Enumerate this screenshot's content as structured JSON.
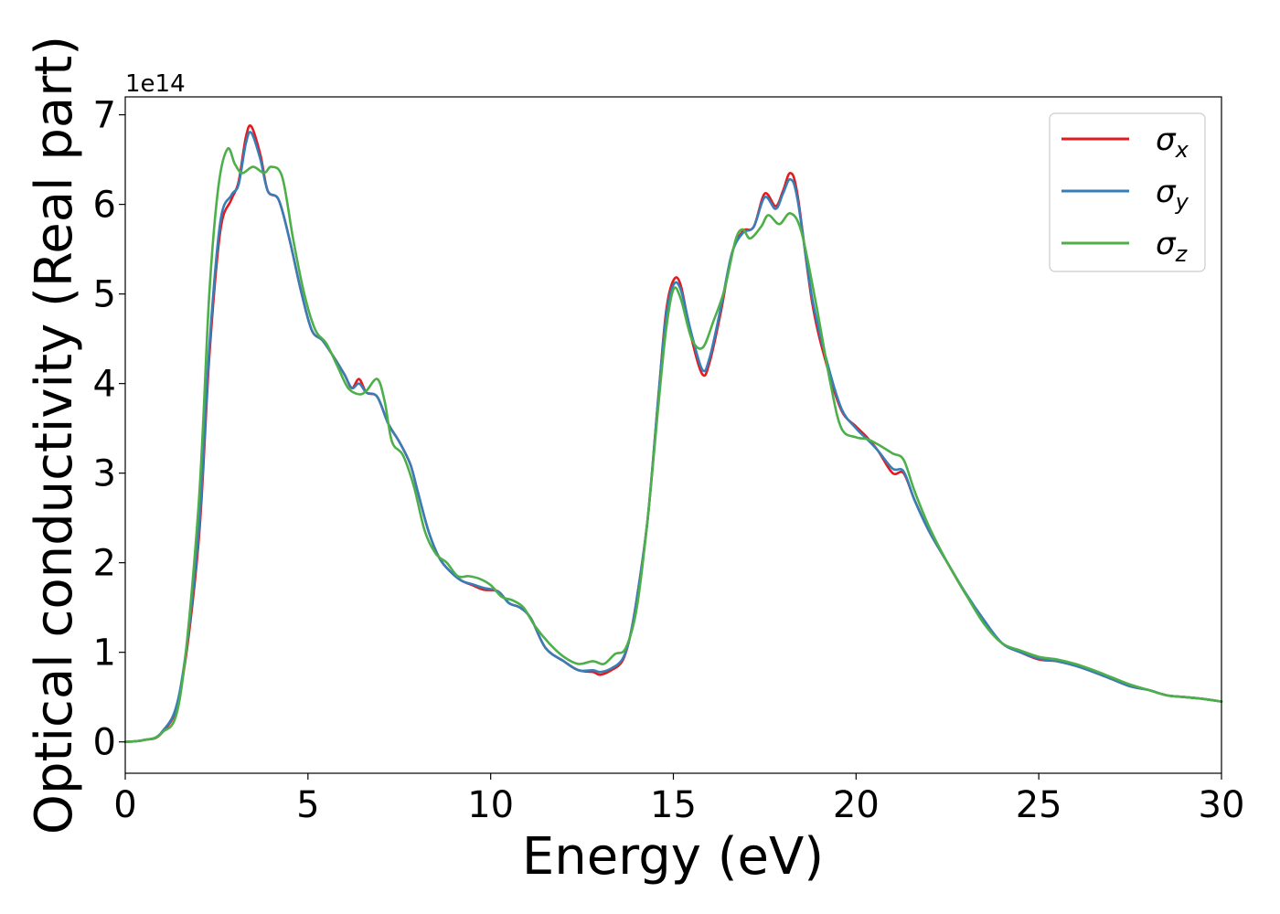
{
  "chart_data": {
    "type": "line",
    "title": "",
    "xlabel": "Energy (eV)",
    "ylabel": "Optical conductivity (Real part)",
    "y_offset_label": "1e14",
    "xlim": [
      0,
      30
    ],
    "ylim": [
      -0.35,
      7.2
    ],
    "xticks": [
      0,
      5,
      10,
      15,
      20,
      25,
      30
    ],
    "yticks": [
      0,
      1,
      2,
      3,
      4,
      5,
      6,
      7
    ],
    "grid": false,
    "legend_position": "top-right",
    "series": [
      {
        "name": "σx",
        "symbol": "σ",
        "subscript": "x",
        "color": "#e41a1c",
        "points": [
          [
            0,
            0
          ],
          [
            0.5,
            0.02
          ],
          [
            1.0,
            0.1
          ],
          [
            1.5,
            0.55
          ],
          [
            2.0,
            2.2
          ],
          [
            2.3,
            4.3
          ],
          [
            2.6,
            5.7
          ],
          [
            2.9,
            6.05
          ],
          [
            3.1,
            6.25
          ],
          [
            3.3,
            6.75
          ],
          [
            3.45,
            6.87
          ],
          [
            3.7,
            6.55
          ],
          [
            3.9,
            6.15
          ],
          [
            4.2,
            6.05
          ],
          [
            4.5,
            5.6
          ],
          [
            4.8,
            5.05
          ],
          [
            5.1,
            4.6
          ],
          [
            5.4,
            4.48
          ],
          [
            5.7,
            4.3
          ],
          [
            6.0,
            4.1
          ],
          [
            6.2,
            3.95
          ],
          [
            6.4,
            4.05
          ],
          [
            6.6,
            3.9
          ],
          [
            6.9,
            3.85
          ],
          [
            7.2,
            3.55
          ],
          [
            7.5,
            3.35
          ],
          [
            7.8,
            3.1
          ],
          [
            8.0,
            2.8
          ],
          [
            8.3,
            2.35
          ],
          [
            8.6,
            2.05
          ],
          [
            8.9,
            1.9
          ],
          [
            9.2,
            1.8
          ],
          [
            9.5,
            1.75
          ],
          [
            9.8,
            1.7
          ],
          [
            10.2,
            1.68
          ],
          [
            10.5,
            1.55
          ],
          [
            10.8,
            1.5
          ],
          [
            11.1,
            1.38
          ],
          [
            11.5,
            1.05
          ],
          [
            12.0,
            0.9
          ],
          [
            12.4,
            0.8
          ],
          [
            12.8,
            0.78
          ],
          [
            13.0,
            0.75
          ],
          [
            13.3,
            0.8
          ],
          [
            13.6,
            0.9
          ],
          [
            13.8,
            1.15
          ],
          [
            14.0,
            1.6
          ],
          [
            14.3,
            2.5
          ],
          [
            14.6,
            3.9
          ],
          [
            14.8,
            4.8
          ],
          [
            15.0,
            5.15
          ],
          [
            15.2,
            5.1
          ],
          [
            15.5,
            4.5
          ],
          [
            15.8,
            4.1
          ],
          [
            16.0,
            4.25
          ],
          [
            16.3,
            4.8
          ],
          [
            16.6,
            5.45
          ],
          [
            16.9,
            5.7
          ],
          [
            17.2,
            5.75
          ],
          [
            17.5,
            6.12
          ],
          [
            17.8,
            5.98
          ],
          [
            18.0,
            6.15
          ],
          [
            18.2,
            6.35
          ],
          [
            18.4,
            6.1
          ],
          [
            18.8,
            4.9
          ],
          [
            19.2,
            4.2
          ],
          [
            19.6,
            3.7
          ],
          [
            20.0,
            3.52
          ],
          [
            20.3,
            3.4
          ],
          [
            20.6,
            3.25
          ],
          [
            21.0,
            3.0
          ],
          [
            21.3,
            3.0
          ],
          [
            21.6,
            2.7
          ],
          [
            22.0,
            2.35
          ],
          [
            22.5,
            2.0
          ],
          [
            23.0,
            1.65
          ],
          [
            23.5,
            1.35
          ],
          [
            24.0,
            1.1
          ],
          [
            24.5,
            1.0
          ],
          [
            25.0,
            0.92
          ],
          [
            25.5,
            0.9
          ],
          [
            26.0,
            0.85
          ],
          [
            26.5,
            0.78
          ],
          [
            27.0,
            0.7
          ],
          [
            27.5,
            0.62
          ],
          [
            28.0,
            0.58
          ],
          [
            28.5,
            0.52
          ],
          [
            29.0,
            0.5
          ],
          [
            29.5,
            0.48
          ],
          [
            30.0,
            0.45
          ]
        ]
      },
      {
        "name": "σy",
        "symbol": "σ",
        "subscript": "y",
        "color": "#377eb8",
        "points": [
          [
            0,
            0
          ],
          [
            0.5,
            0.02
          ],
          [
            1.0,
            0.11
          ],
          [
            1.5,
            0.58
          ],
          [
            2.0,
            2.3
          ],
          [
            2.3,
            4.4
          ],
          [
            2.6,
            5.8
          ],
          [
            2.9,
            6.1
          ],
          [
            3.1,
            6.22
          ],
          [
            3.3,
            6.68
          ],
          [
            3.45,
            6.8
          ],
          [
            3.7,
            6.5
          ],
          [
            3.9,
            6.15
          ],
          [
            4.2,
            6.05
          ],
          [
            4.5,
            5.6
          ],
          [
            4.8,
            5.05
          ],
          [
            5.1,
            4.6
          ],
          [
            5.4,
            4.48
          ],
          [
            5.7,
            4.3
          ],
          [
            6.0,
            4.1
          ],
          [
            6.2,
            3.95
          ],
          [
            6.4,
            4.0
          ],
          [
            6.6,
            3.9
          ],
          [
            6.9,
            3.85
          ],
          [
            7.2,
            3.55
          ],
          [
            7.5,
            3.35
          ],
          [
            7.8,
            3.1
          ],
          [
            8.0,
            2.8
          ],
          [
            8.3,
            2.35
          ],
          [
            8.6,
            2.05
          ],
          [
            8.9,
            1.9
          ],
          [
            9.2,
            1.8
          ],
          [
            9.5,
            1.76
          ],
          [
            9.8,
            1.72
          ],
          [
            10.2,
            1.68
          ],
          [
            10.5,
            1.55
          ],
          [
            10.8,
            1.5
          ],
          [
            11.1,
            1.38
          ],
          [
            11.5,
            1.05
          ],
          [
            12.0,
            0.9
          ],
          [
            12.4,
            0.8
          ],
          [
            12.8,
            0.8
          ],
          [
            13.0,
            0.78
          ],
          [
            13.3,
            0.82
          ],
          [
            13.6,
            0.92
          ],
          [
            13.8,
            1.15
          ],
          [
            14.0,
            1.6
          ],
          [
            14.3,
            2.5
          ],
          [
            14.6,
            3.9
          ],
          [
            14.8,
            4.75
          ],
          [
            15.0,
            5.1
          ],
          [
            15.2,
            5.05
          ],
          [
            15.5,
            4.55
          ],
          [
            15.8,
            4.15
          ],
          [
            16.0,
            4.3
          ],
          [
            16.3,
            4.85
          ],
          [
            16.6,
            5.45
          ],
          [
            16.9,
            5.68
          ],
          [
            17.2,
            5.75
          ],
          [
            17.5,
            6.08
          ],
          [
            17.8,
            5.95
          ],
          [
            18.0,
            6.12
          ],
          [
            18.2,
            6.28
          ],
          [
            18.4,
            6.05
          ],
          [
            18.8,
            4.95
          ],
          [
            19.2,
            4.25
          ],
          [
            19.6,
            3.72
          ],
          [
            20.0,
            3.5
          ],
          [
            20.3,
            3.38
          ],
          [
            20.6,
            3.25
          ],
          [
            21.0,
            3.05
          ],
          [
            21.3,
            3.02
          ],
          [
            21.6,
            2.7
          ],
          [
            22.0,
            2.35
          ],
          [
            22.5,
            2.0
          ],
          [
            23.0,
            1.66
          ],
          [
            23.5,
            1.36
          ],
          [
            24.0,
            1.1
          ],
          [
            24.5,
            1.0
          ],
          [
            25.0,
            0.93
          ],
          [
            25.5,
            0.9
          ],
          [
            26.0,
            0.85
          ],
          [
            26.5,
            0.78
          ],
          [
            27.0,
            0.7
          ],
          [
            27.5,
            0.62
          ],
          [
            28.0,
            0.58
          ],
          [
            28.5,
            0.52
          ],
          [
            29.0,
            0.5
          ],
          [
            29.5,
            0.48
          ],
          [
            30.0,
            0.45
          ]
        ]
      },
      {
        "name": "σz",
        "symbol": "σ",
        "subscript": "z",
        "color": "#4daf4a",
        "points": [
          [
            0,
            0
          ],
          [
            0.5,
            0.02
          ],
          [
            1.0,
            0.1
          ],
          [
            1.5,
            0.5
          ],
          [
            2.0,
            2.6
          ],
          [
            2.3,
            5.0
          ],
          [
            2.55,
            6.2
          ],
          [
            2.8,
            6.62
          ],
          [
            3.0,
            6.45
          ],
          [
            3.2,
            6.35
          ],
          [
            3.5,
            6.42
          ],
          [
            3.8,
            6.35
          ],
          [
            4.0,
            6.42
          ],
          [
            4.3,
            6.3
          ],
          [
            4.6,
            5.6
          ],
          [
            4.9,
            5.0
          ],
          [
            5.2,
            4.6
          ],
          [
            5.5,
            4.45
          ],
          [
            5.8,
            4.2
          ],
          [
            6.1,
            3.95
          ],
          [
            6.4,
            3.88
          ],
          [
            6.6,
            3.92
          ],
          [
            6.9,
            4.05
          ],
          [
            7.1,
            3.8
          ],
          [
            7.3,
            3.35
          ],
          [
            7.6,
            3.2
          ],
          [
            7.9,
            2.85
          ],
          [
            8.2,
            2.35
          ],
          [
            8.5,
            2.1
          ],
          [
            8.8,
            2.0
          ],
          [
            9.1,
            1.85
          ],
          [
            9.4,
            1.85
          ],
          [
            9.7,
            1.82
          ],
          [
            10.0,
            1.75
          ],
          [
            10.3,
            1.62
          ],
          [
            10.6,
            1.58
          ],
          [
            10.9,
            1.5
          ],
          [
            11.2,
            1.3
          ],
          [
            11.6,
            1.1
          ],
          [
            12.0,
            0.95
          ],
          [
            12.4,
            0.87
          ],
          [
            12.8,
            0.9
          ],
          [
            13.1,
            0.87
          ],
          [
            13.4,
            0.98
          ],
          [
            13.7,
            1.05
          ],
          [
            14.0,
            1.5
          ],
          [
            14.3,
            2.5
          ],
          [
            14.6,
            3.8
          ],
          [
            14.8,
            4.6
          ],
          [
            15.0,
            5.05
          ],
          [
            15.2,
            4.95
          ],
          [
            15.5,
            4.5
          ],
          [
            15.8,
            4.4
          ],
          [
            16.1,
            4.7
          ],
          [
            16.4,
            5.05
          ],
          [
            16.7,
            5.6
          ],
          [
            16.9,
            5.72
          ],
          [
            17.1,
            5.62
          ],
          [
            17.4,
            5.75
          ],
          [
            17.6,
            5.88
          ],
          [
            17.9,
            5.78
          ],
          [
            18.2,
            5.9
          ],
          [
            18.5,
            5.7
          ],
          [
            18.9,
            4.9
          ],
          [
            19.3,
            4.0
          ],
          [
            19.6,
            3.5
          ],
          [
            20.0,
            3.4
          ],
          [
            20.3,
            3.38
          ],
          [
            20.6,
            3.32
          ],
          [
            21.0,
            3.22
          ],
          [
            21.3,
            3.15
          ],
          [
            21.6,
            2.8
          ],
          [
            22.0,
            2.4
          ],
          [
            22.5,
            2.0
          ],
          [
            23.0,
            1.65
          ],
          [
            23.5,
            1.32
          ],
          [
            24.0,
            1.1
          ],
          [
            24.5,
            1.02
          ],
          [
            25.0,
            0.95
          ],
          [
            25.5,
            0.92
          ],
          [
            26.0,
            0.87
          ],
          [
            26.5,
            0.8
          ],
          [
            27.0,
            0.72
          ],
          [
            27.5,
            0.64
          ],
          [
            28.0,
            0.58
          ],
          [
            28.5,
            0.52
          ],
          [
            29.0,
            0.5
          ],
          [
            29.5,
            0.48
          ],
          [
            30.0,
            0.45
          ]
        ]
      }
    ]
  }
}
